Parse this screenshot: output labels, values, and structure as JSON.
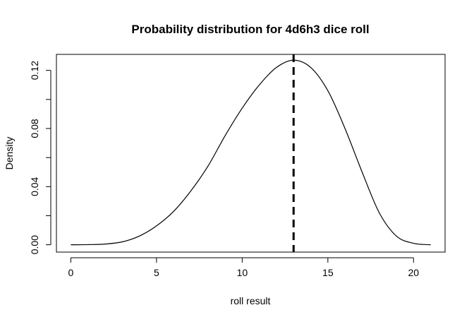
{
  "chart_data": {
    "type": "line",
    "title": "Probability distribution for 4d6h3 dice roll",
    "xlabel": "roll result",
    "ylabel": "Density",
    "xlim": [
      -0.84,
      21.84
    ],
    "ylim": [
      -0.00504,
      0.131
    ],
    "x_ticks": [
      0,
      5,
      10,
      15,
      20
    ],
    "y_ticks": [
      0.0,
      0.04,
      0.08,
      0.12
    ],
    "x_tick_labels": [
      "0",
      "5",
      "10",
      "15",
      "20"
    ],
    "y_tick_labels": [
      "0.00",
      "0.04",
      "0.08",
      "0.12"
    ],
    "grid": false,
    "legend": "none",
    "series": [
      {
        "x": [
          0,
          1,
          2,
          3,
          4,
          5,
          6,
          7,
          8,
          9,
          10,
          11,
          12,
          13,
          14,
          15,
          16,
          17,
          18,
          19,
          20,
          21
        ],
        "y": [
          0.0,
          0.0001,
          0.0005,
          0.002,
          0.006,
          0.013,
          0.023,
          0.037,
          0.054,
          0.075,
          0.094,
          0.11,
          0.122,
          0.127,
          0.122,
          0.106,
          0.08,
          0.05,
          0.022,
          0.006,
          0.001,
          0.0
        ]
      }
    ],
    "reference_line": {
      "x": 13,
      "style": "dashed"
    },
    "colors": {
      "line": "#000000",
      "reference": "#000000",
      "axis": "#000000"
    }
  }
}
